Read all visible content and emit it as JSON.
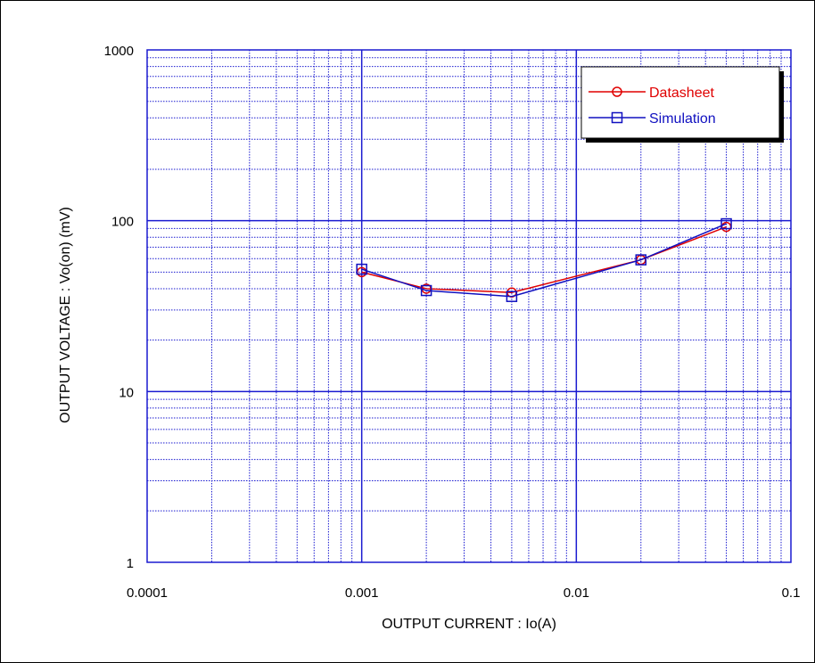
{
  "chart_data": {
    "type": "line",
    "title": "",
    "xlabel": "OUTPUT CURRENT : Io(A)",
    "ylabel": "OUTPUT VOLTAGE : Vo(on) (mV)",
    "xscale": "log",
    "yscale": "log",
    "xlim": [
      0.0001,
      0.1
    ],
    "ylim": [
      1,
      1000
    ],
    "x_tick_labels": [
      "0.0001",
      "0.001",
      "0.01",
      "0.1"
    ],
    "y_tick_labels": [
      "1",
      "10",
      "100",
      "1000"
    ],
    "grid": true,
    "legend_position": "top-right",
    "colors": {
      "axis": "#1a1ad0",
      "datasheet": "#e00000",
      "simulation": "#1010c0"
    },
    "series": [
      {
        "name": "Datasheet",
        "marker": "circle",
        "x": [
          0.001,
          0.002,
          0.005,
          0.02,
          0.05
        ],
        "y": [
          50,
          40,
          38,
          59,
          92
        ]
      },
      {
        "name": "Simulation",
        "marker": "square",
        "x": [
          0.001,
          0.002,
          0.005,
          0.02,
          0.05
        ],
        "y": [
          52,
          39,
          36,
          59,
          96
        ]
      }
    ]
  }
}
